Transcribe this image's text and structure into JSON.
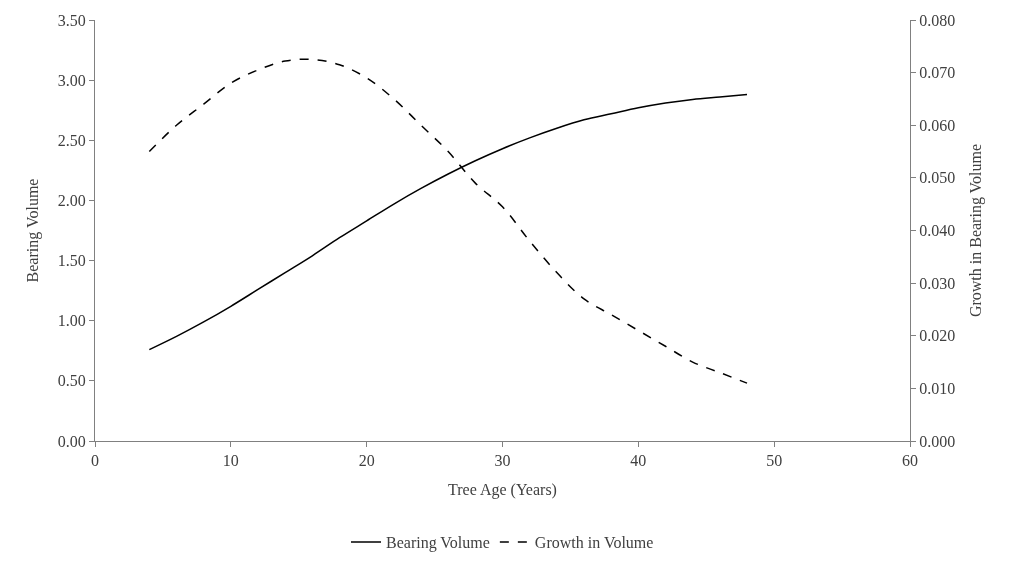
{
  "chart_data": {
    "type": "line",
    "xlabel": "Tree Age (Years)",
    "ylabel": "Bearing Volume",
    "y2label": "Growth in Bearing Volume",
    "xlim": [
      0,
      60
    ],
    "xticks": [
      0,
      10,
      20,
      30,
      40,
      50,
      60
    ],
    "ylim": [
      0,
      3.5
    ],
    "yticks": [
      {
        "value": 0,
        "label": "0.00"
      },
      {
        "value": 0.5,
        "label": "0.50"
      },
      {
        "value": 1,
        "label": "1.00"
      },
      {
        "value": 1.5,
        "label": "1.50"
      },
      {
        "value": 2,
        "label": "2.00"
      },
      {
        "value": 2.5,
        "label": "2.50"
      },
      {
        "value": 3,
        "label": "3.00"
      },
      {
        "value": 3.5,
        "label": "3.50"
      }
    ],
    "y2lim": [
      0,
      0.08
    ],
    "y2ticks": [
      {
        "value": 0,
        "label": "0.000"
      },
      {
        "value": 0.01,
        "label": "0.010"
      },
      {
        "value": 0.02,
        "label": "0.020"
      },
      {
        "value": 0.03,
        "label": "0.030"
      },
      {
        "value": 0.04,
        "label": "0.040"
      },
      {
        "value": 0.05,
        "label": "0.050"
      },
      {
        "value": 0.06,
        "label": "0.060"
      },
      {
        "value": 0.07,
        "label": "0.070"
      },
      {
        "value": 0.08,
        "label": "0.080"
      }
    ],
    "x": [
      4,
      6,
      8,
      10,
      12,
      14,
      16,
      18,
      20,
      22,
      24,
      26,
      28,
      30,
      32,
      34,
      36,
      38,
      40,
      42,
      44,
      46,
      48
    ],
    "series": [
      {
        "name": "Bearing Volume",
        "color": "#000000",
        "line_style": "solid",
        "values": [
          0.76,
          0.87,
          0.99,
          1.12,
          1.26,
          1.4,
          1.54,
          1.69,
          1.83,
          1.97,
          2.1,
          2.22,
          2.33,
          2.43,
          2.52,
          2.6,
          2.67,
          2.72,
          2.77,
          2.81,
          2.84,
          2.86,
          2.88
        ]
      },
      {
        "name": "Growth in Volume",
        "color": "#000000",
        "line_style": "dashed",
        "axis": "y2",
        "values": [
          0.055,
          0.06,
          0.064,
          0.068,
          0.0705,
          0.0722,
          0.0725,
          0.0715,
          0.069,
          0.065,
          0.06,
          0.055,
          0.049,
          0.0445,
          0.038,
          0.032,
          0.027,
          0.024,
          0.021,
          0.018,
          0.015,
          0.013,
          0.011
        ]
      }
    ],
    "legend": "bottom",
    "marker": "none"
  }
}
